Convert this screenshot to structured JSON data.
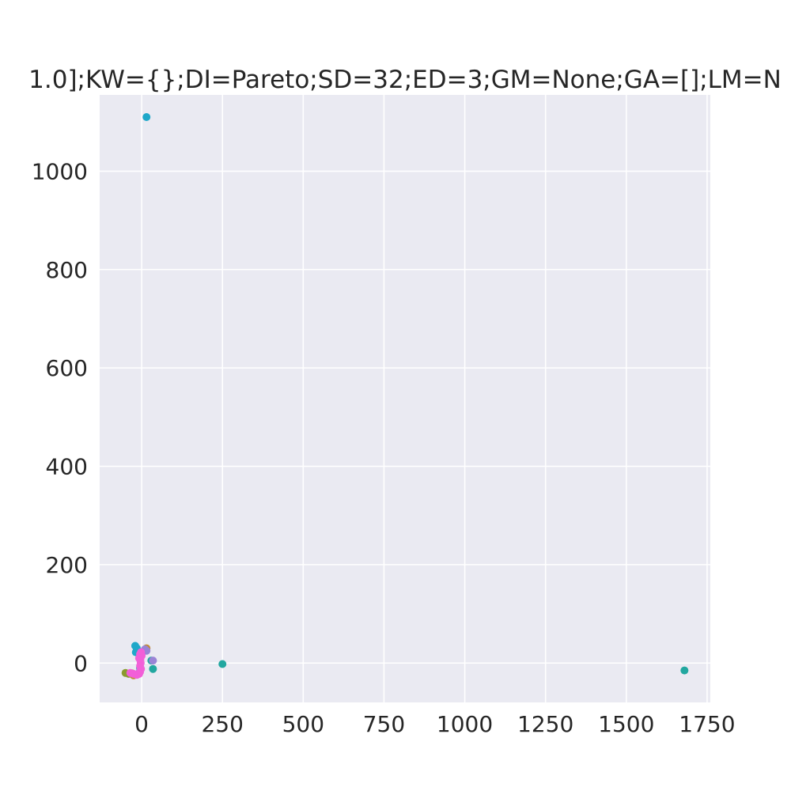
{
  "chart_data": {
    "type": "scatter",
    "title": "1.0];KW={};DI=Pareto;SD=32;ED=3;GM=None;GA=[];LM=N",
    "xlabel": "",
    "ylabel": "",
    "xlim": [
      -130,
      1760
    ],
    "ylim": [
      -80,
      1155
    ],
    "grid": true,
    "x_ticks": [
      "0",
      "250",
      "500",
      "750",
      "1000",
      "1250",
      "1500",
      "1750"
    ],
    "y_ticks": [
      "0",
      "200",
      "400",
      "600",
      "800",
      "1000"
    ],
    "colors": {
      "background": "#eaeaf2",
      "grid": "#ffffff",
      "text": "#262626"
    },
    "series": [
      {
        "color": "#1fa8c9",
        "points": [
          [
            15,
            1110
          ],
          [
            -20,
            35
          ],
          [
            -18,
            22
          ],
          [
            -15,
            30
          ]
        ]
      },
      {
        "color": "#22a7a0",
        "points": [
          [
            1680,
            -15
          ],
          [
            250,
            -2
          ],
          [
            -5,
            -10
          ],
          [
            35,
            -12
          ],
          [
            30,
            5
          ]
        ]
      },
      {
        "color": "#8b9a2f",
        "points": [
          [
            -50,
            -20
          ],
          [
            -40,
            -22
          ],
          [
            -30,
            -21
          ],
          [
            -20,
            -24
          ]
        ]
      },
      {
        "color": "#c18b3a",
        "points": [
          [
            15,
            30
          ],
          [
            -25,
            -25
          ],
          [
            -10,
            -22
          ]
        ]
      },
      {
        "color": "#9a84d6",
        "points": [
          [
            35,
            5
          ],
          [
            10,
            28
          ],
          [
            15,
            25
          ],
          [
            -5,
            -15
          ]
        ]
      },
      {
        "color": "#f25fd8",
        "points": [
          [
            -2,
            22
          ],
          [
            -5,
            18
          ],
          [
            -3,
            12
          ],
          [
            -4,
            6
          ],
          [
            -3,
            0
          ],
          [
            -5,
            -6
          ],
          [
            -2,
            -12
          ],
          [
            -5,
            -18
          ],
          [
            -8,
            -22
          ],
          [
            -15,
            -24
          ],
          [
            -25,
            -22
          ],
          [
            -35,
            -20
          ],
          [
            0,
            15
          ],
          [
            -8,
            10
          ]
        ]
      }
    ]
  }
}
